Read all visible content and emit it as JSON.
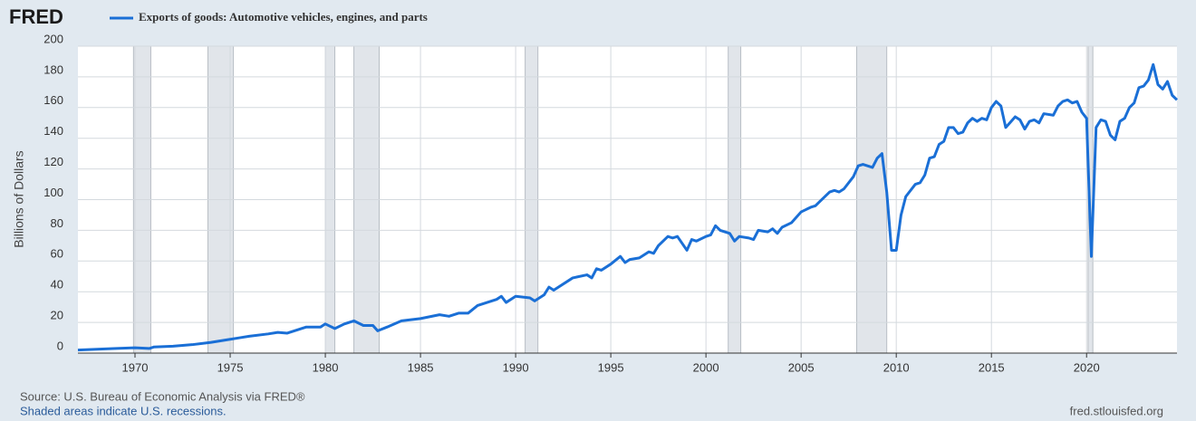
{
  "chart_data": {
    "type": "line",
    "logo": "FRED",
    "y_label": "Billions of Dollars",
    "source": "Source: U.S. Bureau of Economic Analysis via FRED®",
    "note": "Shaded areas indicate U.S. recessions.",
    "credit": "fred.stlouisfed.org",
    "xlim": [
      1967,
      2024.75
    ],
    "xticks": [
      1970,
      1975,
      1980,
      1985,
      1990,
      1995,
      2000,
      2005,
      2010,
      2015,
      2020
    ],
    "ylim": [
      0,
      200
    ],
    "yticks": [
      0,
      20,
      40,
      60,
      80,
      100,
      120,
      140,
      160,
      180,
      200
    ],
    "grid": true,
    "recessions": [
      [
        1969.92,
        1970.83
      ],
      [
        1973.83,
        1975.17
      ],
      [
        1980.0,
        1980.5
      ],
      [
        1981.5,
        1982.83
      ],
      [
        1990.5,
        1991.17
      ],
      [
        2001.17,
        2001.83
      ],
      [
        2007.92,
        2009.5
      ],
      [
        2020.08,
        2020.33
      ]
    ],
    "x": [
      1967,
      1968,
      1969,
      1970,
      1970.75,
      1971,
      1972,
      1973,
      1974,
      1975,
      1975.5,
      1976,
      1977,
      1977.5,
      1978,
      1978.5,
      1979,
      1979.75,
      1980,
      1980.5,
      1981,
      1981.5,
      1982,
      1982.5,
      1982.75,
      1983.25,
      1984,
      1985,
      1986,
      1986.5,
      1987,
      1987.5,
      1988,
      1988.5,
      1989,
      1989.25,
      1989.5,
      1990,
      1990.75,
      1991,
      1991.5,
      1991.75,
      1992,
      1993,
      1993.75,
      1994,
      1994.25,
      1994.5,
      1995,
      1995.5,
      1995.75,
      1996,
      1996.5,
      1997,
      1997.25,
      1997.5,
      1998,
      1998.25,
      1998.5,
      1999,
      1999.25,
      1999.5,
      2000,
      2000.25,
      2000.5,
      2000.75,
      2001.25,
      2001.5,
      2001.75,
      2002.25,
      2002.5,
      2002.75,
      2003.25,
      2003.5,
      2003.75,
      2004,
      2004.5,
      2005,
      2005.5,
      2005.75,
      2006,
      2006.5,
      2006.75,
      2007,
      2007.25,
      2007.75,
      2008,
      2008.25,
      2008.75,
      2009,
      2009.25,
      2009.5,
      2009.75,
      2010,
      2010.25,
      2010.5,
      2011,
      2011.25,
      2011.5,
      2011.75,
      2012,
      2012.25,
      2012.5,
      2012.75,
      2013,
      2013.25,
      2013.5,
      2013.75,
      2014,
      2014.25,
      2014.5,
      2014.75,
      2015,
      2015.25,
      2015.5,
      2015.75,
      2016.25,
      2016.5,
      2016.75,
      2017,
      2017.25,
      2017.5,
      2017.75,
      2018.25,
      2018.5,
      2018.75,
      2019,
      2019.25,
      2019.5,
      2019.75,
      2020,
      2020.25,
      2020.5,
      2020.75,
      2021,
      2021.25,
      2021.5,
      2021.75,
      2022,
      2022.25,
      2022.5,
      2022.75,
      2023,
      2023.25,
      2023.5,
      2023.75,
      2024,
      2024.25,
      2024.5,
      2024.75
    ],
    "series": [
      {
        "name": "Exports of goods: Automotive vehicles, engines, and parts",
        "color": "#1a6fd6",
        "values": [
          2,
          2.5,
          3,
          3.5,
          3,
          4,
          4.5,
          5.5,
          7,
          9,
          10,
          11,
          12.5,
          13.5,
          13,
          15,
          17,
          17,
          19,
          16,
          19,
          21,
          18,
          18,
          14.5,
          17,
          21,
          22.5,
          25,
          24,
          26,
          26,
          31,
          33,
          35,
          37,
          33,
          37,
          36,
          34,
          38,
          43,
          41,
          49,
          51,
          49,
          55,
          54,
          58,
          63,
          59,
          61,
          62,
          66,
          65,
          70,
          76,
          75,
          76,
          67,
          74,
          73,
          76,
          77,
          83,
          80,
          78,
          73,
          76,
          75,
          74,
          80,
          79,
          81,
          78,
          82,
          85,
          92,
          95,
          96,
          99,
          105,
          106,
          105,
          107,
          115,
          122,
          123,
          121,
          127,
          130,
          105,
          67,
          67,
          90,
          102,
          110,
          111,
          116,
          127,
          128,
          136,
          138,
          147,
          147,
          143,
          144,
          150,
          153,
          151,
          153,
          152,
          160,
          164,
          161,
          147,
          154,
          152,
          146,
          151,
          152,
          150,
          156,
          155,
          161,
          164,
          165,
          163,
          164,
          157,
          153,
          63,
          147,
          152,
          151,
          142,
          139,
          151,
          153,
          160,
          163,
          173,
          174,
          178,
          188,
          175,
          172,
          177,
          168,
          165
        ]
      }
    ]
  }
}
